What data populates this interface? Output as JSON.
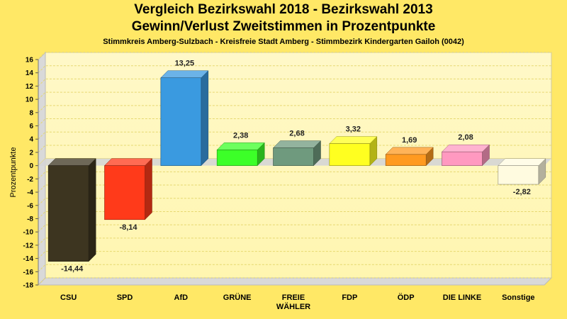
{
  "chart_data": {
    "type": "bar",
    "title": "Vergleich Bezirkswahl 2018 - Bezirkswahl 2013",
    "subtitle": "Gewinn/Verlust Zweitstimmen in Prozentpunkte",
    "caption": "Stimmkreis Amberg-Sulzbach - Kreisfreie Stadt Amberg - Stimmbezirk Kindergarten Gailoh (0042)",
    "xlabel": "",
    "ylabel": "Prozentpunkte",
    "ylim": [
      -18,
      16
    ],
    "yticks": [
      16,
      14,
      12,
      10,
      8,
      6,
      4,
      2,
      0,
      -2,
      -4,
      -6,
      -8,
      -10,
      -12,
      -14,
      -16,
      -18
    ],
    "categories": [
      {
        "lines": [
          "CSU"
        ]
      },
      {
        "lines": [
          "SPD"
        ]
      },
      {
        "lines": [
          "AfD"
        ]
      },
      {
        "lines": [
          "GRÜNE"
        ]
      },
      {
        "lines": [
          "FREIE",
          "WÄHLER"
        ]
      },
      {
        "lines": [
          "FDP"
        ]
      },
      {
        "lines": [
          "ÖDP"
        ]
      },
      {
        "lines": [
          "DIE LINKE"
        ]
      },
      {
        "lines": [
          "Sonstige"
        ]
      }
    ],
    "values": [
      -14.44,
      -8.14,
      13.25,
      2.38,
      2.68,
      3.32,
      1.69,
      2.08,
      -2.82
    ],
    "value_labels": [
      "-14,44",
      "-8,14",
      "13,25",
      "2,38",
      "2,68",
      "3,32",
      "1,69",
      "2,08",
      "-2,82"
    ],
    "colors": [
      "#3d3520",
      "#ff3a1a",
      "#3a9ae0",
      "#3cff28",
      "#6f9a7e",
      "#ffff20",
      "#ff9a20",
      "#ff99c0",
      "#fffbe0"
    ],
    "grid": true,
    "legend": "none"
  }
}
